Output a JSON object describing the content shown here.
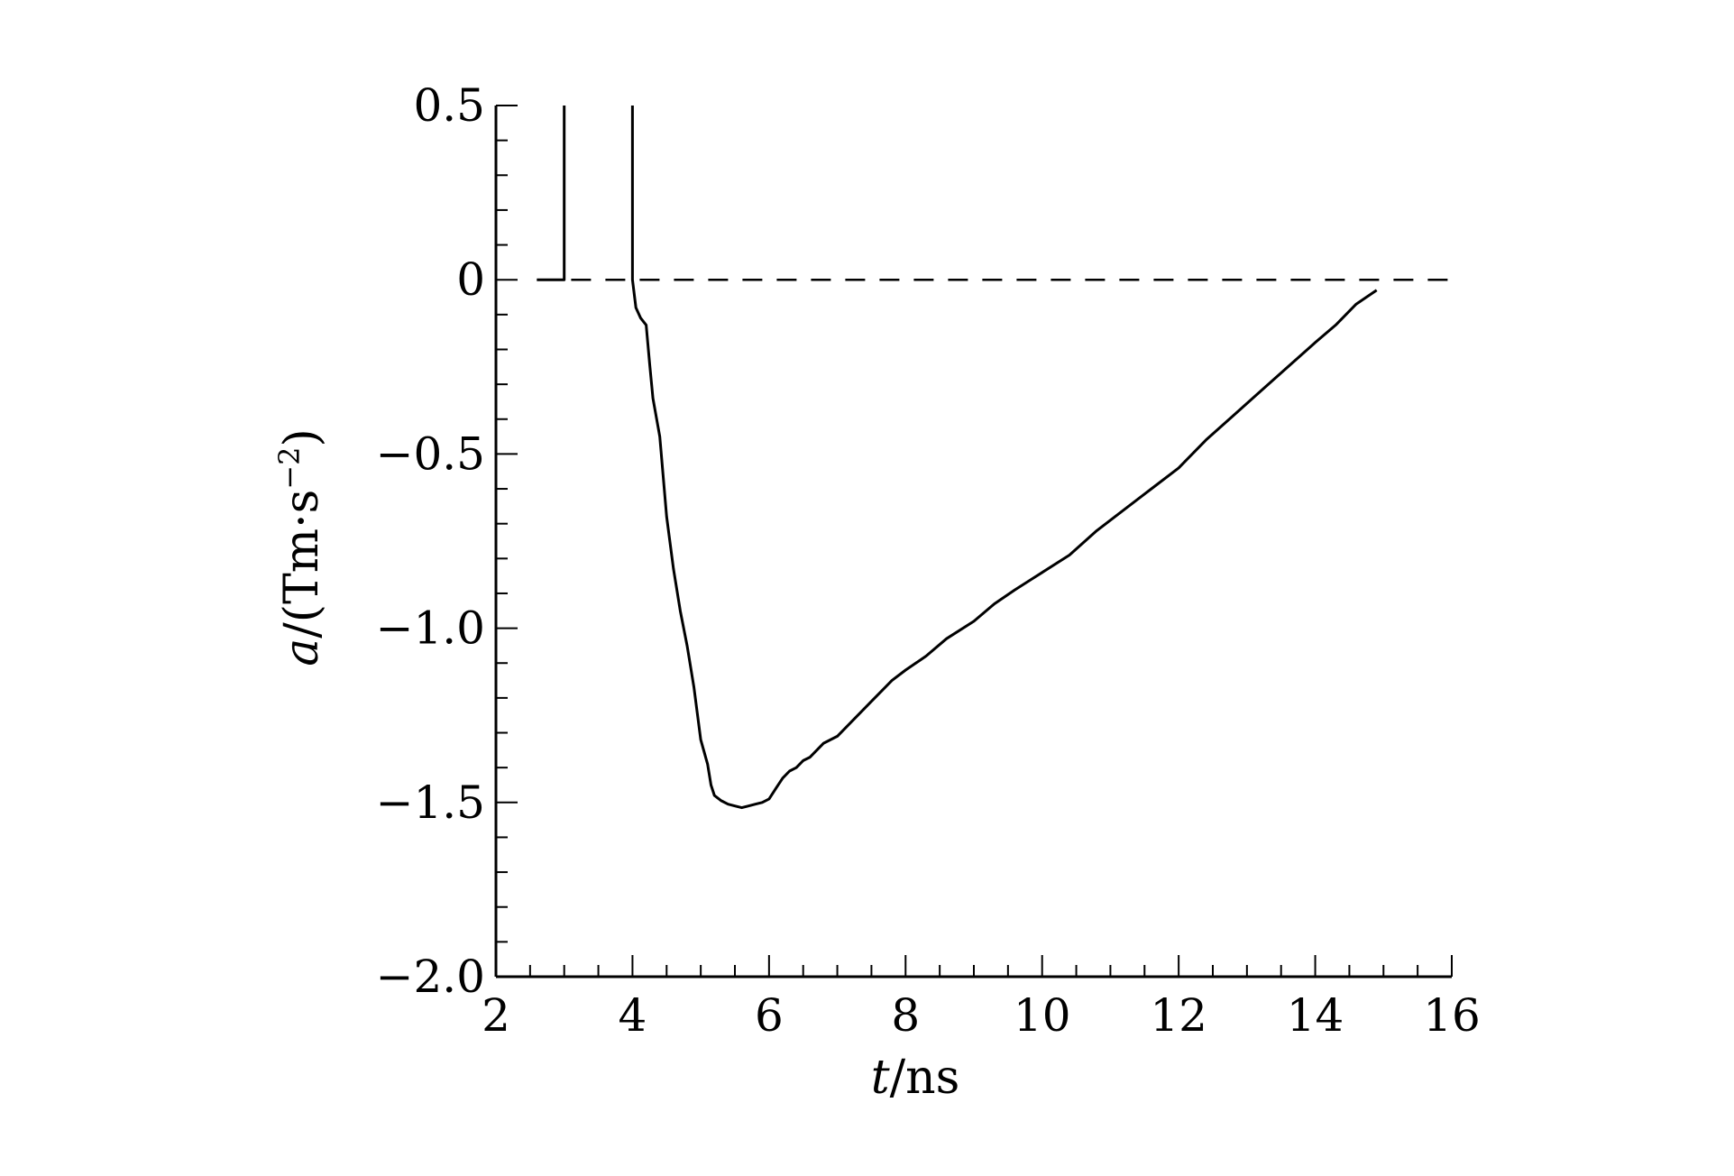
{
  "chart_data": {
    "type": "line",
    "xlabel": {
      "italic": "t",
      "rest": "/ns"
    },
    "ylabel": {
      "italic": "a",
      "rest": "/(Tm·s",
      "sup": "−2",
      "close": ")"
    },
    "xlim": [
      2,
      16
    ],
    "ylim": [
      -2.0,
      0.5
    ],
    "x_ticks": [
      2,
      4,
      6,
      8,
      10,
      12,
      14,
      16
    ],
    "x_tick_labels": [
      "2",
      "4",
      "6",
      "8",
      "10",
      "12",
      "14",
      "16"
    ],
    "x_minor_step": 0.5,
    "y_ticks": [
      0.5,
      0,
      -0.5,
      -1.0,
      -1.5,
      -2.0
    ],
    "y_tick_labels": [
      "0.5",
      "0",
      "−0.5",
      "−1.0",
      "−1.5",
      "−2.0"
    ],
    "y_minor_step": 0.1,
    "grid": false,
    "legend": "none",
    "series": [
      {
        "style": "solid",
        "color": "#000000",
        "x": [
          2.6,
          3.0,
          3.0
        ],
        "y": [
          0,
          0,
          0.5
        ]
      },
      {
        "style": "solid",
        "color": "#000000",
        "x": [
          4.0,
          4.0,
          4.05,
          4.12,
          4.2,
          4.25,
          4.3,
          4.4,
          4.5,
          4.6,
          4.7,
          4.8,
          4.9,
          5.0,
          5.1,
          5.15,
          5.2,
          5.3,
          5.4,
          5.5,
          5.6,
          5.7,
          5.8,
          5.9,
          6.0,
          6.1,
          6.2,
          6.3,
          6.4,
          6.5,
          6.6,
          6.8,
          7.0,
          7.2,
          7.5,
          7.8,
          8.0,
          8.3,
          8.6,
          9.0,
          9.3,
          9.6,
          10.0,
          10.4,
          10.8,
          11.2,
          11.6,
          12.0,
          12.4,
          12.8,
          13.2,
          13.6,
          14.0,
          14.3,
          14.6,
          14.9
        ],
        "y": [
          0.5,
          0.0,
          -0.08,
          -0.11,
          -0.13,
          -0.24,
          -0.34,
          -0.45,
          -0.68,
          -0.83,
          -0.95,
          -1.05,
          -1.17,
          -1.32,
          -1.39,
          -1.45,
          -1.48,
          -1.495,
          -1.505,
          -1.51,
          -1.515,
          -1.51,
          -1.505,
          -1.5,
          -1.49,
          -1.46,
          -1.43,
          -1.41,
          -1.4,
          -1.38,
          -1.37,
          -1.33,
          -1.31,
          -1.27,
          -1.21,
          -1.15,
          -1.12,
          -1.08,
          -1.03,
          -0.98,
          -0.93,
          -0.89,
          -0.84,
          -0.79,
          -0.72,
          -0.66,
          -0.6,
          -0.54,
          -0.46,
          -0.39,
          -0.32,
          -0.25,
          -0.18,
          -0.13,
          -0.07,
          -0.03
        ]
      },
      {
        "style": "dashed",
        "color": "#000000",
        "x": [
          2.6,
          16.0
        ],
        "y": [
          0,
          0
        ]
      }
    ]
  }
}
